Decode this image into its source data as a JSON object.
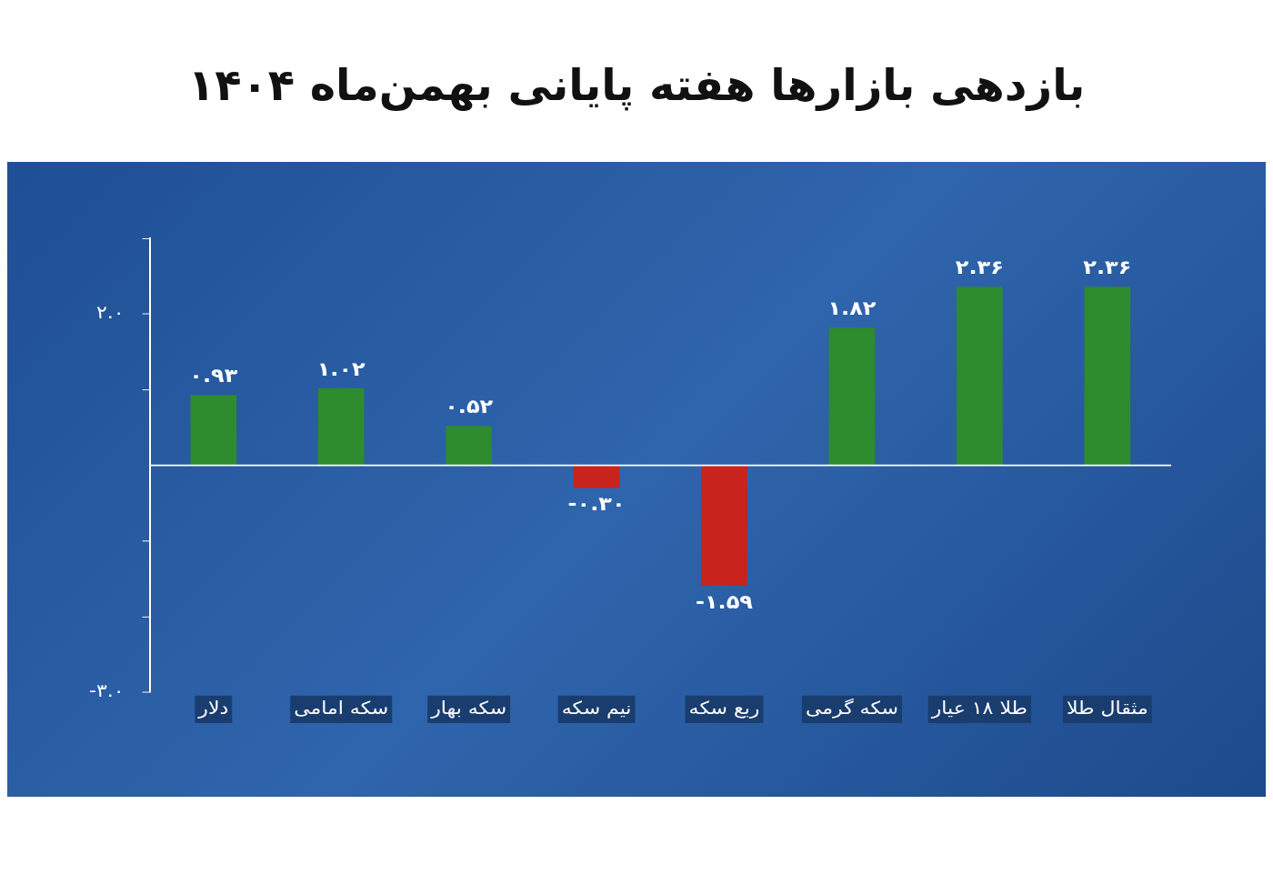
{
  "chart_data": {
    "type": "bar",
    "title": "بازدهی بازارها هفته پایانی بهمن‌ماه ۱۴۰۴",
    "categories": [
      "دلار",
      "سکه امامی",
      "سکه بهار",
      "نیم سکه",
      "ربع سکه",
      "سکه گرمی",
      "طلا ۱۸ عیار",
      "مثقال طلا"
    ],
    "values": [
      0.93,
      1.02,
      0.52,
      -0.3,
      -1.59,
      1.82,
      2.36,
      2.36
    ],
    "colors": [
      "#2e8b2e",
      "#2e8b2e",
      "#2e8b2e",
      "#c8231c",
      "#c8231c",
      "#2e8b2e",
      "#2e8b2e",
      "#2e8b2e"
    ],
    "value_labels": [
      "۰.۹۳",
      "۱.۰۲",
      "۰.۵۲",
      "-۰.۳۰",
      "-۱.۵۹",
      "۱.۸۲",
      "۲.۳۶",
      "۲.۳۶"
    ],
    "ylim": [
      -3,
      3
    ],
    "yticks": [
      {
        "value": 3,
        "label": null
      },
      {
        "value": 2,
        "label": "۲.۰"
      },
      {
        "value": 1,
        "label": null
      },
      {
        "value": -1,
        "label": null
      },
      {
        "value": -2,
        "label": null
      },
      {
        "value": -3,
        "label": "-۳.۰"
      }
    ],
    "grid": false,
    "legend": false
  }
}
